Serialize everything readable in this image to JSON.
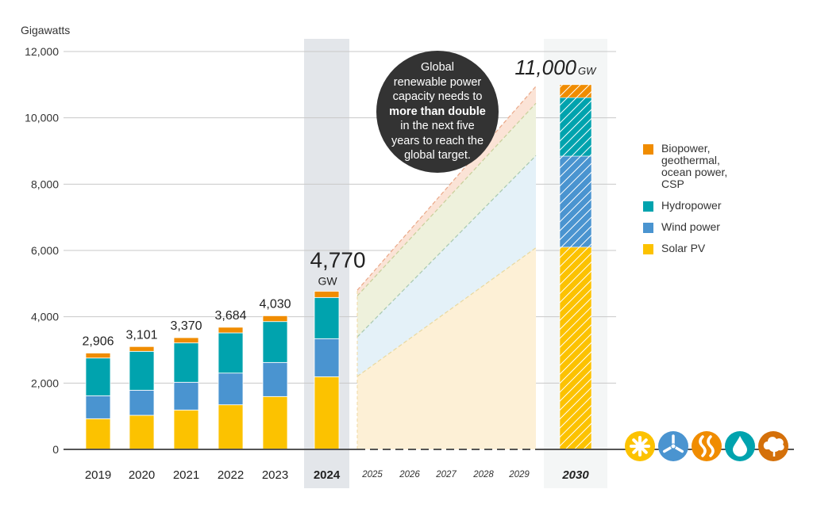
{
  "chart_data": {
    "type": "bar",
    "subtype": "stacked bar with projected area",
    "ylabel": "Gigawatts",
    "ylim": [
      0,
      12000
    ],
    "yticks": [
      "0",
      "2,000",
      "4,000",
      "6,000",
      "8,000",
      "10,000",
      "12,000"
    ],
    "ytick_values": [
      0,
      2000,
      4000,
      6000,
      8000,
      10000,
      12000
    ],
    "grid": true,
    "legend_position": "right",
    "categories": [
      "2019",
      "2020",
      "2021",
      "2022",
      "2023",
      "2024"
    ],
    "highlight_category": "2024",
    "totals": [
      "2,906",
      "3,101",
      "3,370",
      "3,684",
      "4,030",
      "4,770"
    ],
    "total_2024_unit": "GW",
    "series": [
      {
        "name": "Solar PV",
        "color": "#fcc200",
        "values": [
          925,
          1028,
          1188,
          1346,
          1594,
          2191
        ]
      },
      {
        "name": "Wind power",
        "color": "#4a94d0",
        "values": [
          693,
          757,
          837,
          956,
          1028,
          1148
        ]
      },
      {
        "name": "Hydropower",
        "color": "#00a3ae",
        "values": [
          1138,
          1172,
          1186,
          1212,
          1234,
          1243
        ]
      },
      {
        "name": "Biopower, geothermal, ocean power, CSP",
        "color": "#f08c00",
        "values": [
          150,
          144,
          159,
          170,
          174,
          188
        ]
      }
    ],
    "projection_years": [
      "2025",
      "2026",
      "2027",
      "2028",
      "2029"
    ],
    "projection": {
      "start_cumulative": [
        2200,
        3390,
        4630,
        4800
      ],
      "end_cumulative": [
        6080,
        8860,
        10440,
        10950
      ],
      "fill_colors": [
        "#fdf0d6",
        "#e4f1f8",
        "#eef1dc",
        "#fbe3d6"
      ],
      "line_colors": [
        "#e8d9a0",
        "#a8c9b0",
        "#c8cf9a",
        "#eaa888"
      ]
    },
    "target": {
      "year": "2030",
      "total_label": "11,000",
      "unit": "GW",
      "values": [
        6100,
        2745,
        1765,
        390
      ],
      "pattern": "hatched"
    },
    "annotation": {
      "lines": [
        "Global",
        "renewable power",
        "capacity needs to",
        "more than double",
        "in the next five",
        "years to reach the",
        "global target."
      ],
      "bold_line": 3
    },
    "icons": [
      {
        "name": "solar-icon",
        "color": "#fcc200"
      },
      {
        "name": "wind-turbine-icon",
        "color": "#4a94d0"
      },
      {
        "name": "geothermal-icon",
        "color": "#f08c00"
      },
      {
        "name": "water-drop-icon",
        "color": "#00a3ae"
      },
      {
        "name": "bio-leaf-icon",
        "color": "#d4700a"
      }
    ]
  }
}
